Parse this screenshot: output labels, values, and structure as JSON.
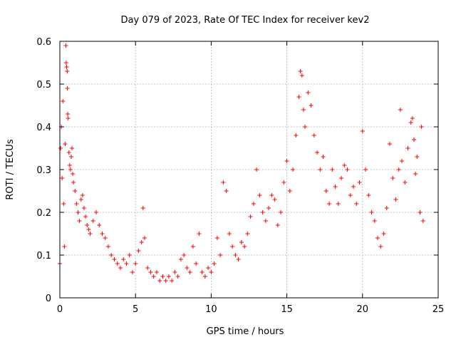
{
  "chart_data": {
    "type": "scatter",
    "title": "Day 079 of 2023, Rate Of TEC Index for receiver kev2",
    "xlabel": "GPS time / hours",
    "ylabel": "ROTI / TECUs",
    "xlim": [
      0,
      25
    ],
    "ylim": [
      0,
      0.6
    ],
    "x_ticks": [
      0,
      5,
      10,
      15,
      20,
      25
    ],
    "x_tick_labels": [
      "0",
      "5",
      "10",
      "15",
      "20",
      "25"
    ],
    "y_ticks": [
      0,
      0.1,
      0.2,
      0.3,
      0.4,
      0.5,
      0.6
    ],
    "y_tick_labels": [
      "0",
      "0.1",
      "0.2",
      "0.3",
      "0.4",
      "0.5",
      "0.6"
    ],
    "grid": true,
    "marker": "plus",
    "color": "#ff0000",
    "series": [
      {
        "points": [
          [
            0.0,
            0.08
          ],
          [
            0.05,
            0.35
          ],
          [
            0.1,
            0.4
          ],
          [
            0.15,
            0.28
          ],
          [
            0.2,
            0.46
          ],
          [
            0.25,
            0.22
          ],
          [
            0.3,
            0.12
          ],
          [
            0.35,
            0.36
          ],
          [
            0.4,
            0.59
          ],
          [
            0.42,
            0.55
          ],
          [
            0.45,
            0.54
          ],
          [
            0.48,
            0.53
          ],
          [
            0.5,
            0.49
          ],
          [
            0.52,
            0.43
          ],
          [
            0.55,
            0.42
          ],
          [
            0.6,
            0.34
          ],
          [
            0.65,
            0.31
          ],
          [
            0.7,
            0.3
          ],
          [
            0.75,
            0.33
          ],
          [
            0.8,
            0.35
          ],
          [
            0.85,
            0.29
          ],
          [
            0.9,
            0.27
          ],
          [
            1.0,
            0.25
          ],
          [
            1.1,
            0.22
          ],
          [
            1.2,
            0.2
          ],
          [
            1.3,
            0.18
          ],
          [
            1.4,
            0.23
          ],
          [
            1.5,
            0.24
          ],
          [
            1.6,
            0.21
          ],
          [
            1.7,
            0.19
          ],
          [
            1.8,
            0.17
          ],
          [
            1.9,
            0.16
          ],
          [
            2.0,
            0.15
          ],
          [
            2.2,
            0.18
          ],
          [
            2.4,
            0.2
          ],
          [
            2.6,
            0.17
          ],
          [
            2.8,
            0.15
          ],
          [
            3.0,
            0.14
          ],
          [
            3.2,
            0.12
          ],
          [
            3.4,
            0.1
          ],
          [
            3.6,
            0.09
          ],
          [
            3.8,
            0.08
          ],
          [
            4.0,
            0.07
          ],
          [
            4.2,
            0.09
          ],
          [
            4.4,
            0.08
          ],
          [
            4.6,
            0.1
          ],
          [
            4.8,
            0.06
          ],
          [
            5.0,
            0.08
          ],
          [
            5.2,
            0.11
          ],
          [
            5.4,
            0.13
          ],
          [
            5.5,
            0.21
          ],
          [
            5.6,
            0.14
          ],
          [
            5.8,
            0.07
          ],
          [
            6.0,
            0.06
          ],
          [
            6.2,
            0.05
          ],
          [
            6.4,
            0.06
          ],
          [
            6.6,
            0.04
          ],
          [
            6.8,
            0.05
          ],
          [
            7.0,
            0.04
          ],
          [
            7.2,
            0.05
          ],
          [
            7.4,
            0.04
          ],
          [
            7.6,
            0.06
          ],
          [
            7.8,
            0.05
          ],
          [
            8.0,
            0.09
          ],
          [
            8.2,
            0.1
          ],
          [
            8.4,
            0.07
          ],
          [
            8.6,
            0.06
          ],
          [
            8.8,
            0.12
          ],
          [
            9.0,
            0.08
          ],
          [
            9.2,
            0.15
          ],
          [
            9.4,
            0.06
          ],
          [
            9.6,
            0.05
          ],
          [
            9.8,
            0.07
          ],
          [
            10.0,
            0.06
          ],
          [
            10.2,
            0.08
          ],
          [
            10.4,
            0.14
          ],
          [
            10.6,
            0.1
          ],
          [
            10.8,
            0.27
          ],
          [
            11.0,
            0.25
          ],
          [
            11.2,
            0.15
          ],
          [
            11.4,
            0.12
          ],
          [
            11.6,
            0.1
          ],
          [
            11.8,
            0.09
          ],
          [
            12.0,
            0.13
          ],
          [
            12.2,
            0.12
          ],
          [
            12.4,
            0.15
          ],
          [
            12.6,
            0.19
          ],
          [
            12.8,
            0.22
          ],
          [
            13.0,
            0.3
          ],
          [
            13.2,
            0.24
          ],
          [
            13.4,
            0.2
          ],
          [
            13.6,
            0.18
          ],
          [
            13.8,
            0.21
          ],
          [
            14.0,
            0.24
          ],
          [
            14.2,
            0.23
          ],
          [
            14.4,
            0.17
          ],
          [
            14.6,
            0.2
          ],
          [
            14.8,
            0.27
          ],
          [
            15.0,
            0.32
          ],
          [
            15.2,
            0.25
          ],
          [
            15.4,
            0.3
          ],
          [
            15.6,
            0.38
          ],
          [
            15.8,
            0.47
          ],
          [
            15.9,
            0.53
          ],
          [
            16.0,
            0.52
          ],
          [
            16.1,
            0.44
          ],
          [
            16.2,
            0.4
          ],
          [
            16.4,
            0.48
          ],
          [
            16.6,
            0.45
          ],
          [
            16.8,
            0.38
          ],
          [
            17.0,
            0.34
          ],
          [
            17.2,
            0.3
          ],
          [
            17.4,
            0.33
          ],
          [
            17.6,
            0.25
          ],
          [
            17.8,
            0.22
          ],
          [
            18.0,
            0.3
          ],
          [
            18.2,
            0.26
          ],
          [
            18.4,
            0.22
          ],
          [
            18.6,
            0.28
          ],
          [
            18.8,
            0.31
          ],
          [
            19.0,
            0.3
          ],
          [
            19.2,
            0.24
          ],
          [
            19.4,
            0.26
          ],
          [
            19.6,
            0.22
          ],
          [
            19.8,
            0.27
          ],
          [
            20.0,
            0.39
          ],
          [
            20.2,
            0.3
          ],
          [
            20.4,
            0.24
          ],
          [
            20.6,
            0.2
          ],
          [
            20.8,
            0.18
          ],
          [
            21.0,
            0.14
          ],
          [
            21.2,
            0.12
          ],
          [
            21.4,
            0.15
          ],
          [
            21.6,
            0.21
          ],
          [
            21.8,
            0.36
          ],
          [
            22.0,
            0.28
          ],
          [
            22.2,
            0.23
          ],
          [
            22.4,
            0.3
          ],
          [
            22.5,
            0.44
          ],
          [
            22.6,
            0.32
          ],
          [
            22.8,
            0.27
          ],
          [
            23.0,
            0.35
          ],
          [
            23.2,
            0.41
          ],
          [
            23.3,
            0.42
          ],
          [
            23.4,
            0.37
          ],
          [
            23.5,
            0.29
          ],
          [
            23.6,
            0.33
          ],
          [
            23.8,
            0.2
          ],
          [
            23.9,
            0.4
          ],
          [
            24.0,
            0.18
          ]
        ]
      }
    ]
  }
}
